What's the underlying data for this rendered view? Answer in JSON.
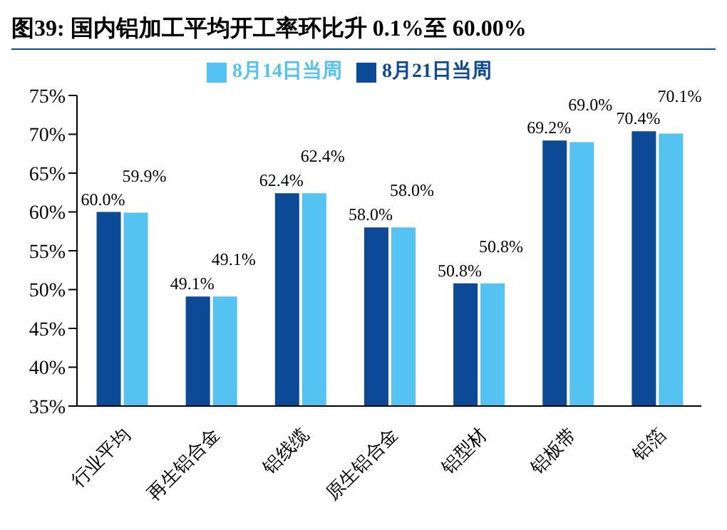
{
  "chart_data": {
    "type": "bar",
    "title": "图39:  国内铝加工平均开工率环比升 0.1%至 60.00%",
    "categories": [
      "行业平均",
      "再生铝合金",
      "铝线缆",
      "原生铝合金",
      "铝型材",
      "铝板带",
      "铝箔"
    ],
    "series": [
      {
        "name": "8月21日当周",
        "color": "#0c4a98",
        "values": [
          60.0,
          49.1,
          62.4,
          58.0,
          50.8,
          69.2,
          70.4
        ],
        "value_labels": [
          "60.0%",
          "49.1%",
          "62.4%",
          "58.0%",
          "50.8%",
          "69.2%",
          "70.4%"
        ]
      },
      {
        "name": "8月14日当周",
        "color": "#55c3f1",
        "values": [
          59.9,
          49.1,
          62.4,
          58.0,
          50.8,
          69.0,
          70.1
        ],
        "value_labels": [
          "59.9%",
          "49.1%",
          "62.4%",
          "58.0%",
          "50.8%",
          "69.0%",
          "70.1%"
        ]
      }
    ],
    "ylim": [
      35,
      75
    ],
    "yticks": [
      {
        "value": 35,
        "label": "35%"
      },
      {
        "value": 40,
        "label": "40%"
      },
      {
        "value": 45,
        "label": "45%"
      },
      {
        "value": 50,
        "label": "50%"
      },
      {
        "value": 55,
        "label": "55%"
      },
      {
        "value": 60,
        "label": "60%"
      },
      {
        "value": 65,
        "label": "65%"
      },
      {
        "value": 70,
        "label": "70%"
      },
      {
        "value": 75,
        "label": "75%"
      }
    ],
    "grid": false,
    "legend": "top"
  }
}
